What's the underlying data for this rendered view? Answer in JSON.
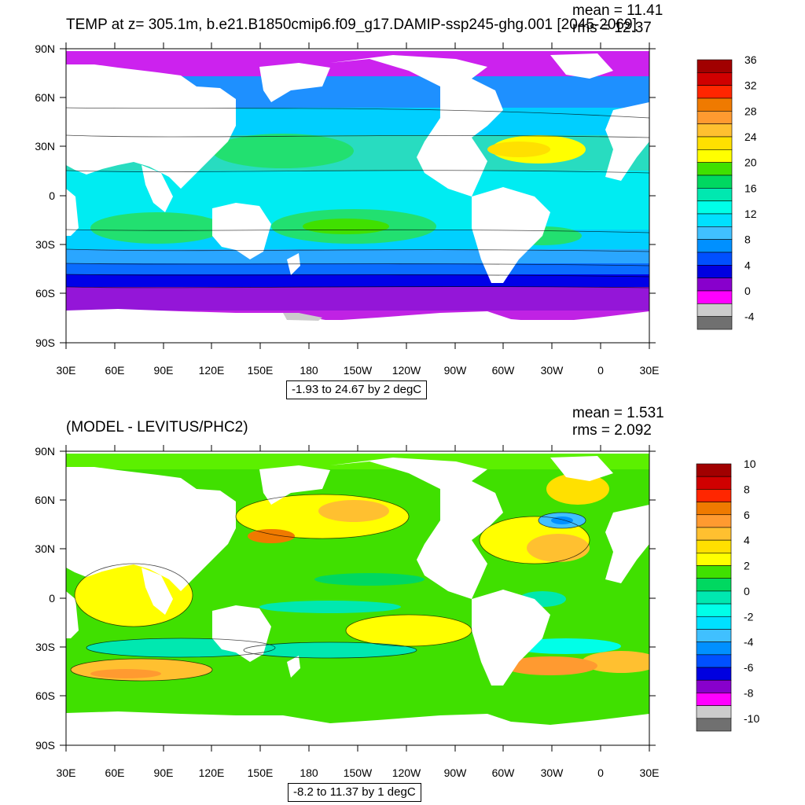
{
  "panels": [
    {
      "title": "TEMP at z= 305.1m, b.e21.B1850cmip6.f09_g17.DAMIP-ssp245-ghg.001 [2045-2069]",
      "mean": "mean = 11.41",
      "rms": "rms = 12.37",
      "range": "-1.93 to 24.67 by 2 degC",
      "colorbar_labels": [
        "36",
        "32",
        "28",
        "24",
        "20",
        "16",
        "12",
        "8",
        "4",
        "0",
        "-4"
      ],
      "colorbar_colors": [
        "#a10000",
        "#d00000",
        "#ff2600",
        "#ef7a00",
        "#ff9a30",
        "#ffc030",
        "#ffe000",
        "#ffff00",
        "#40e000",
        "#00d860",
        "#00e8b0",
        "#00ffe8",
        "#00e0ff",
        "#40c0ff",
        "#0090ff",
        "#0050ff",
        "#0000e0",
        "#8800cc",
        "#ff00ff",
        "#cccccc",
        "#707070"
      ]
    },
    {
      "title": "(MODEL - LEVITUS/PHC2)",
      "mean": "mean = 1.531",
      "rms": "rms = 2.092",
      "range": "-8.2 to 11.37 by 1 degC",
      "colorbar_labels": [
        "10",
        "8",
        "6",
        "4",
        "2",
        "0",
        "-2",
        "-4",
        "-6",
        "-8",
        "-10"
      ],
      "colorbar_colors": [
        "#a10000",
        "#d00000",
        "#ff2600",
        "#ef7a00",
        "#ff9a30",
        "#ffc030",
        "#ffe000",
        "#ffff00",
        "#40e000",
        "#00d860",
        "#00e8b0",
        "#00ffe8",
        "#00e0ff",
        "#40c0ff",
        "#0090ff",
        "#0050ff",
        "#0000e0",
        "#8800cc",
        "#ff00ff",
        "#cccccc",
        "#707070"
      ]
    }
  ],
  "axes": {
    "lat_labels": [
      "90N",
      "60N",
      "30N",
      "0",
      "30S",
      "60S",
      "90S"
    ],
    "lon_labels": [
      "30E",
      "60E",
      "90E",
      "120E",
      "150E",
      "180",
      "150W",
      "120W",
      "90W",
      "60W",
      "30W",
      "0",
      "30E"
    ]
  }
}
